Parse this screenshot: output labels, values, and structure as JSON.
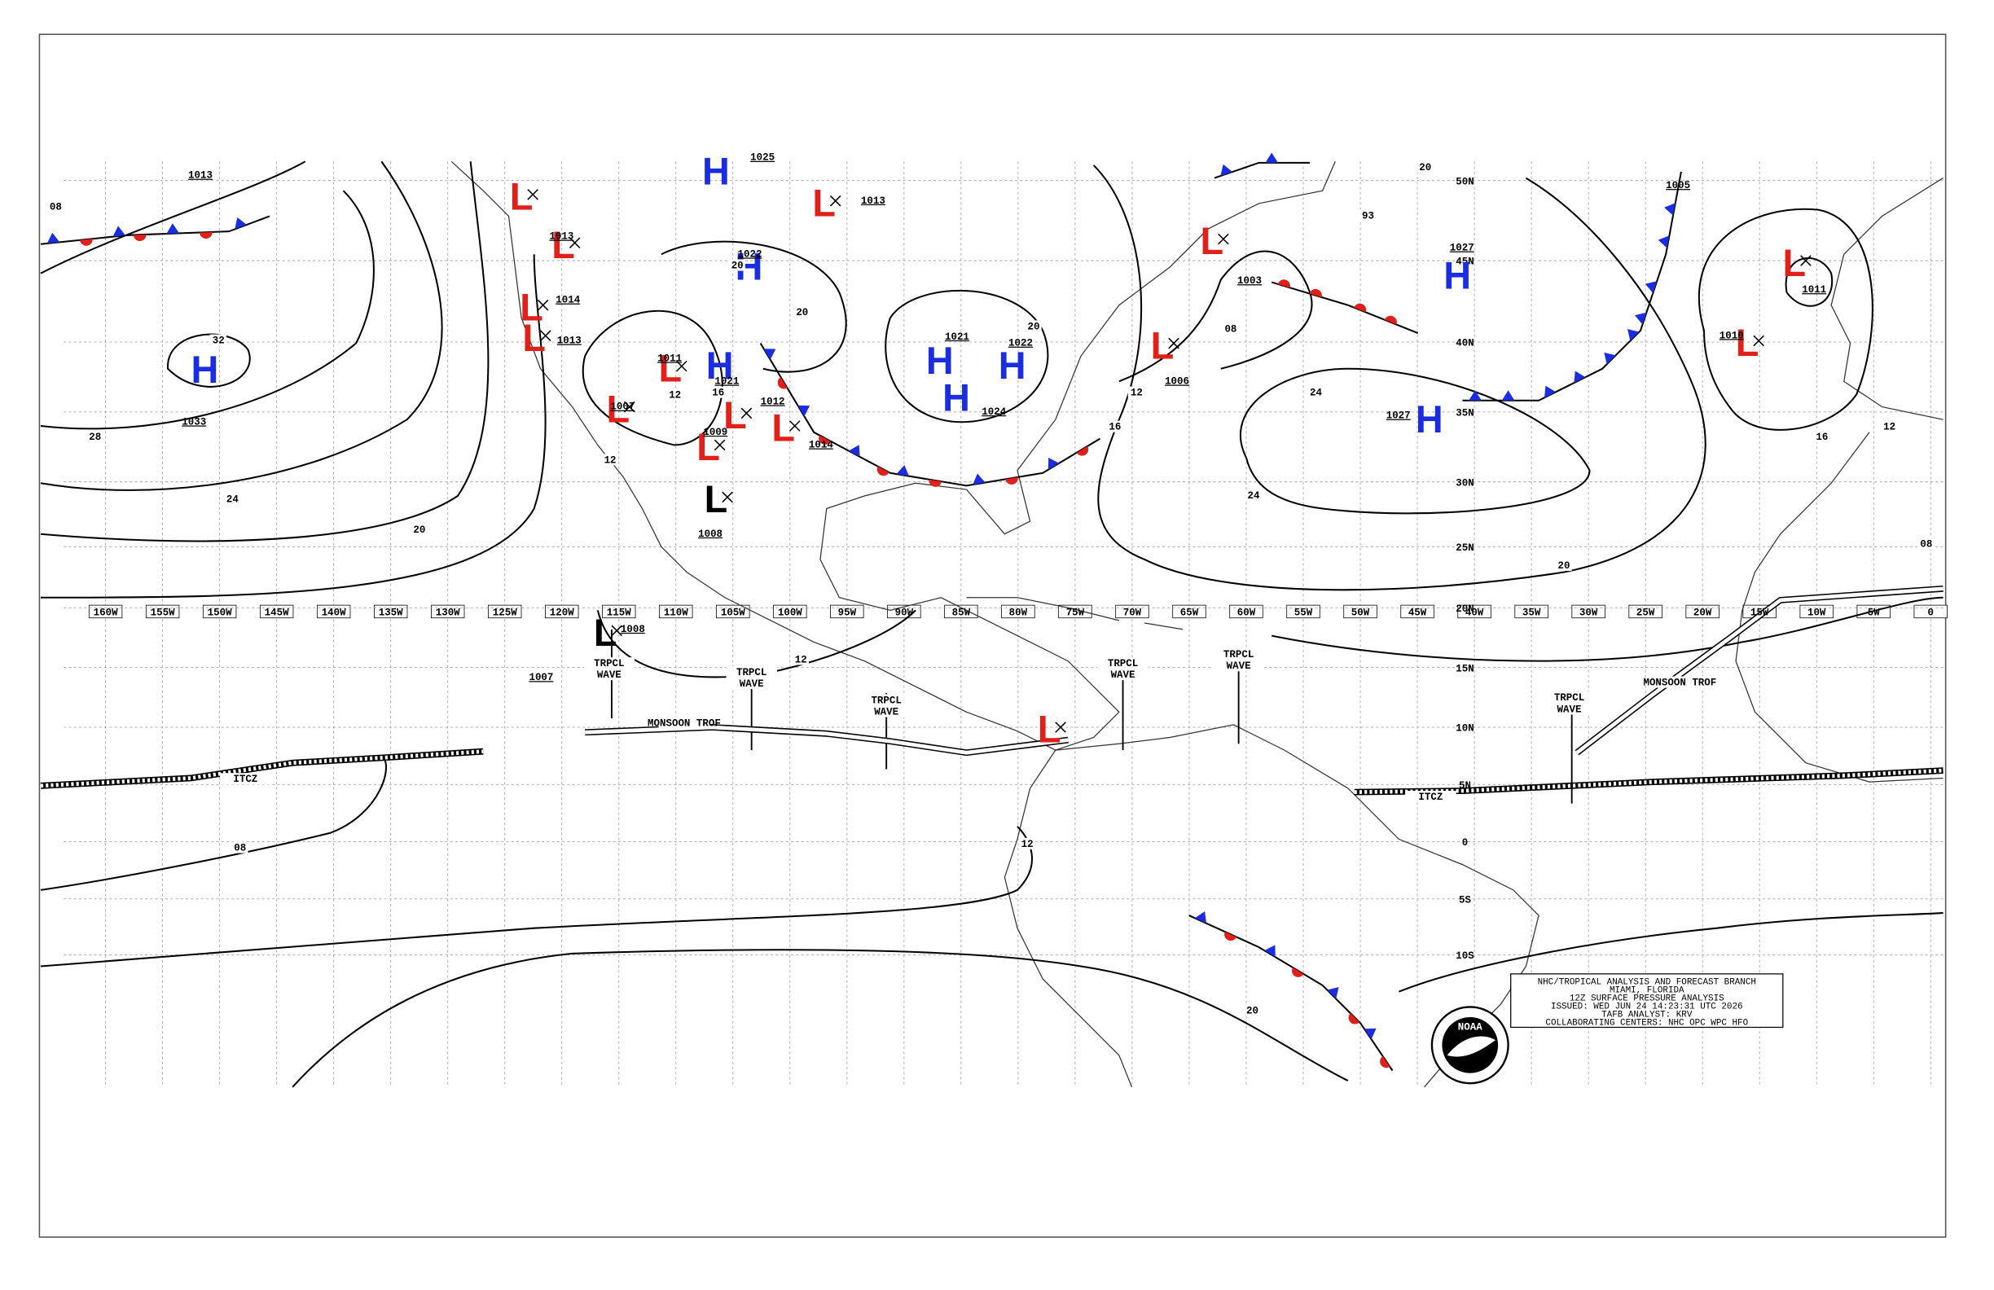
{
  "map": {
    "pressure_centers": [
      {
        "symbol": "L",
        "color": "#e0201a"
      },
      {
        "symbol": "L",
        "pressure": "1013",
        "color": "#e0201a"
      },
      {
        "symbol": "L",
        "pressure": "1014",
        "color": "#e0201a"
      },
      {
        "symbol": "L",
        "pressure": "1013",
        "color": "#e0201a"
      },
      {
        "symbol": "L",
        "pressure": "1011",
        "color": "#e0201a"
      },
      {
        "symbol": "L",
        "pressure": "1007",
        "color": "#e0201a"
      },
      {
        "symbol": "L",
        "pressure": "1009",
        "color": "#e0201a"
      },
      {
        "symbol": "L",
        "pressure": "1012",
        "color": "#e0201a"
      },
      {
        "symbol": "L",
        "pressure": "1014",
        "color": "#e0201a"
      },
      {
        "symbol": "L",
        "pressure": "1013",
        "color": "#e0201a"
      },
      {
        "symbol": "L",
        "pressure": "1003",
        "color": "#e0201a"
      },
      {
        "symbol": "L",
        "pressure": "1006",
        "color": "#e0201a"
      },
      {
        "symbol": "L",
        "pressure": "1011",
        "color": "#e0201a"
      },
      {
        "symbol": "L",
        "pressure": "1010",
        "color": "#e0201a"
      },
      {
        "symbol": "L",
        "pressure": "1008",
        "color": "#000000"
      },
      {
        "symbol": "L",
        "pressure": "1008",
        "color": "#000000"
      },
      {
        "symbol": "L",
        "color": "#e0201a"
      },
      {
        "symbol": "H",
        "pressure": "1033",
        "color": "#1a2ee0"
      },
      {
        "symbol": "H",
        "pressure": "1025",
        "color": "#1a2ee0"
      },
      {
        "symbol": "H",
        "pressure": "1022",
        "color": "#1a2ee0"
      },
      {
        "symbol": "H",
        "pressure": "1021",
        "color": "#1a2ee0"
      },
      {
        "symbol": "H",
        "pressure": "1021",
        "color": "#1a2ee0"
      },
      {
        "symbol": "H",
        "pressure": "1022",
        "color": "#1a2ee0"
      },
      {
        "symbol": "H",
        "pressure": "1024",
        "color": "#1a2ee0"
      },
      {
        "symbol": "H",
        "pressure": "1027",
        "color": "#1a2ee0"
      },
      {
        "symbol": "H",
        "pressure": "1027",
        "color": "#1a2ee0"
      }
    ],
    "pressure_labels": [
      "1013",
      "1007",
      "1005"
    ],
    "isobar_labels": [
      "08",
      "28",
      "24",
      "20",
      "32",
      "20",
      "20",
      "20",
      "20",
      "93",
      "08",
      "12",
      "16",
      "24",
      "24",
      "20",
      "16",
      "12",
      "08",
      "12",
      "12",
      "16",
      "12",
      "12",
      "08",
      "20"
    ],
    "longitude_labels": [
      "160W",
      "155W",
      "150W",
      "145W",
      "140W",
      "135W",
      "130W",
      "125W",
      "120W",
      "115W",
      "110W",
      "105W",
      "100W",
      "95W",
      "90W",
      "85W",
      "80W",
      "75W",
      "70W",
      "65W",
      "60W",
      "55W",
      "50W",
      "45W",
      "40W",
      "35W",
      "30W",
      "25W",
      "20W",
      "15W",
      "10W",
      "5W",
      "0"
    ],
    "latitude_labels": [
      "50N",
      "45N",
      "40N",
      "35N",
      "30N",
      "25N",
      "20N",
      "15N",
      "10N",
      "5N",
      "0",
      "5S",
      "10S"
    ],
    "features": [
      {
        "lines": [
          "TRPCL",
          "WAVE"
        ]
      },
      {
        "lines": [
          "TRPCL",
          "WAVE"
        ]
      },
      {
        "lines": [
          "TRPCL",
          "WAVE"
        ]
      },
      {
        "lines": [
          "TRPCL",
          "WAVE"
        ]
      },
      {
        "lines": [
          "TRPCL",
          "WAVE"
        ]
      },
      {
        "lines": [
          "TRPCL",
          "WAVE"
        ]
      },
      {
        "lines": [
          "MONSOON TROF"
        ]
      },
      {
        "lines": [
          "MONSOON TROF"
        ]
      },
      {
        "lines": [
          "ITCZ"
        ]
      },
      {
        "lines": [
          "ITCZ"
        ]
      }
    ],
    "info_box": {
      "lines": [
        "NHC/TROPICAL ANALYSIS AND FORECAST BRANCH",
        "MIAMI, FLORIDA",
        "12Z SURFACE PRESSURE ANALYSIS",
        "ISSUED: WED JUN 24 14:23:31 UTC 2026",
        "TAFB ANALYST: KRV",
        "COLLABORATING CENTERS: NHC OPC WPC HFO"
      ]
    },
    "logo": "NOAA"
  }
}
